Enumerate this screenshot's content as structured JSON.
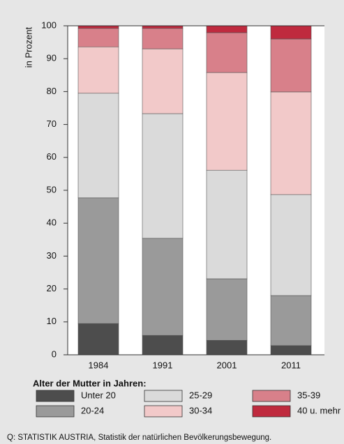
{
  "chart_data": {
    "type": "stacked_bar",
    "ylabel": "in Prozent",
    "categories": [
      "1984",
      "1991",
      "2001",
      "2011"
    ],
    "series": [
      {
        "name": "Unter 20",
        "color": "#4d4d4d",
        "values": [
          9.5,
          5.9,
          4.4,
          2.8
        ]
      },
      {
        "name": "20-24",
        "color": "#9a9a9a",
        "values": [
          38.2,
          29.5,
          18.7,
          15.2
        ]
      },
      {
        "name": "25-29",
        "color": "#dadada",
        "values": [
          31.8,
          37.9,
          33.0,
          30.7
        ]
      },
      {
        "name": "30-34",
        "color": "#f2c9c9",
        "values": [
          14.1,
          19.7,
          29.7,
          31.2
        ]
      },
      {
        "name": "35-39",
        "color": "#d8808a",
        "values": [
          5.6,
          6.2,
          12.1,
          16.1
        ]
      },
      {
        "name": "40 u. mehr",
        "color": "#bf2a3e",
        "values": [
          0.8,
          0.8,
          2.1,
          4.0
        ]
      }
    ],
    "ylim": [
      0,
      100
    ],
    "yticks": [
      0,
      10,
      20,
      30,
      40,
      50,
      60,
      70,
      80,
      90,
      100
    ],
    "legend_title": "Alter der Mutter in Jahren:",
    "source": "Q: STATISTIK AUSTRIA, Statistik der natürlichen Bevölkerungsbewegung."
  }
}
